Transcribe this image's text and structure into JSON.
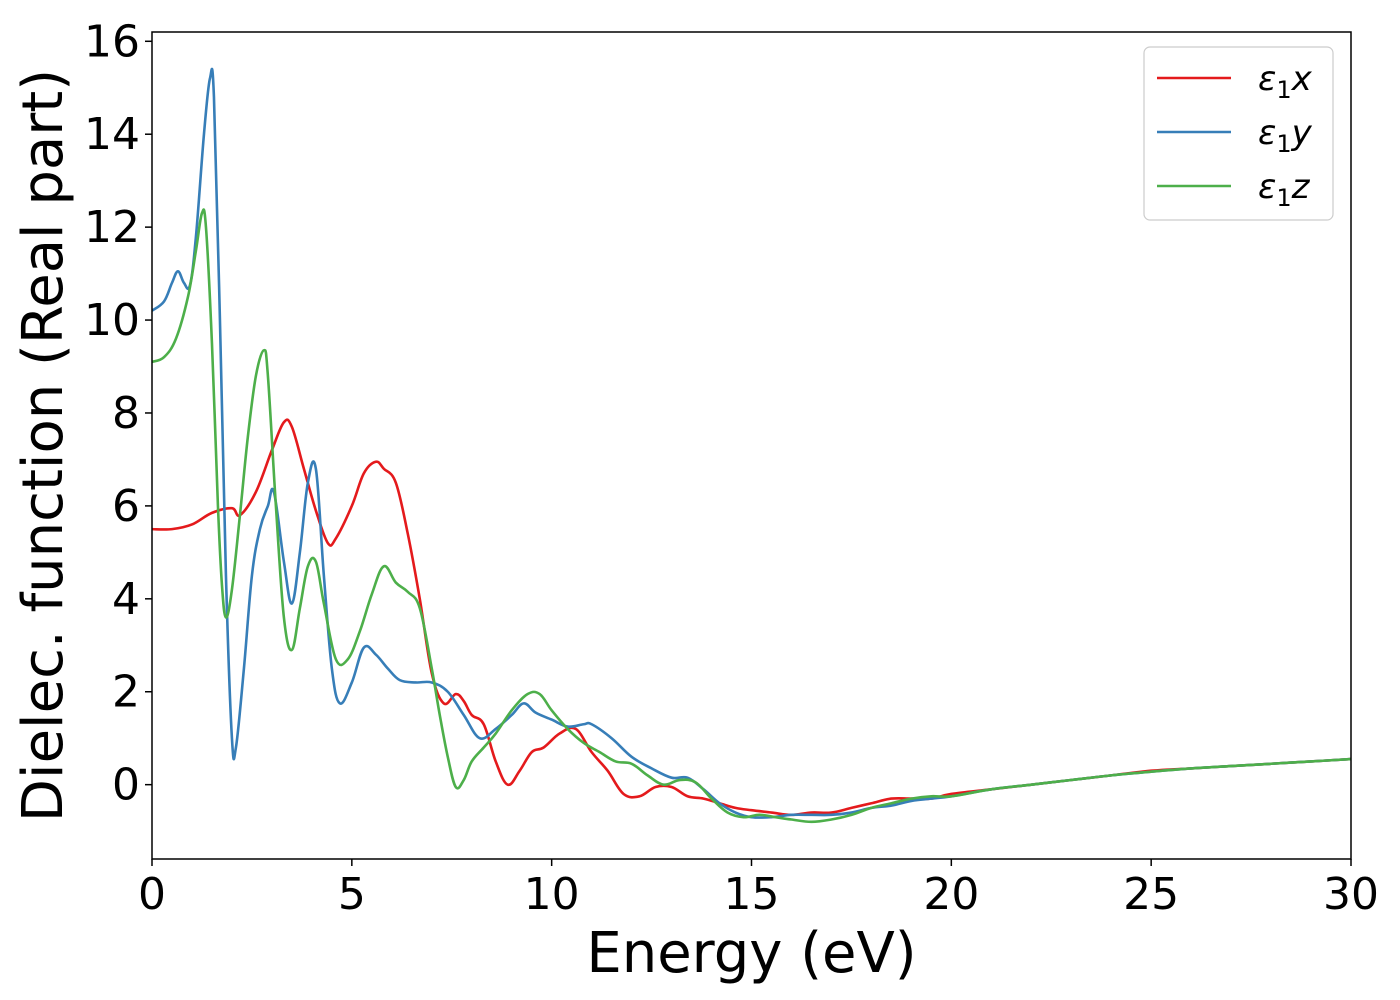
{
  "chart_data": {
    "type": "line",
    "xlabel": "Energy (eV)",
    "ylabel": "Dielec. function (Real part)",
    "xlim": [
      0,
      30
    ],
    "ylim": [
      -1.6,
      16.2
    ],
    "x_ticks": [
      0,
      5,
      10,
      15,
      20,
      25,
      30
    ],
    "y_ticks": [
      0,
      2,
      4,
      6,
      8,
      10,
      12,
      14,
      16
    ],
    "grid": false,
    "legend_position": "top-right",
    "series": [
      {
        "name": "ε1x",
        "label_main": "ε",
        "label_sub": "1",
        "label_suffix": "x",
        "color": "#e41a1c",
        "x": [
          0,
          0.5,
          1.0,
          1.5,
          2.0,
          2.2,
          2.6,
          3.0,
          3.3,
          3.5,
          3.8,
          4.1,
          4.4,
          4.6,
          5.0,
          5.3,
          5.6,
          5.8,
          6.1,
          6.4,
          6.7,
          7.0,
          7.3,
          7.6,
          7.8,
          8.0,
          8.3,
          8.6,
          8.9,
          9.2,
          9.5,
          9.8,
          10.2,
          10.6,
          11.0,
          11.4,
          11.8,
          12.2,
          12.6,
          13.0,
          13.4,
          13.8,
          14.2,
          14.6,
          15.0,
          15.5,
          16.0,
          16.5,
          17.0,
          17.5,
          18.0,
          18.5,
          19.0,
          19.5,
          20.0,
          21.0,
          22.0,
          23.0,
          24.0,
          25.0,
          26.0,
          27.0,
          28.0,
          29.0,
          30.0
        ],
        "y": [
          5.5,
          5.5,
          5.6,
          5.85,
          5.95,
          5.8,
          6.3,
          7.2,
          7.8,
          7.7,
          6.8,
          5.9,
          5.2,
          5.3,
          6.0,
          6.7,
          6.95,
          6.8,
          6.5,
          5.4,
          4.0,
          2.4,
          1.75,
          1.95,
          1.8,
          1.5,
          1.3,
          0.5,
          0.0,
          0.3,
          0.7,
          0.8,
          1.1,
          1.2,
          0.7,
          0.3,
          -0.2,
          -0.25,
          -0.05,
          -0.05,
          -0.25,
          -0.3,
          -0.4,
          -0.5,
          -0.55,
          -0.6,
          -0.65,
          -0.6,
          -0.6,
          -0.5,
          -0.4,
          -0.3,
          -0.3,
          -0.3,
          -0.2,
          -0.1,
          0.0,
          0.1,
          0.2,
          0.3,
          0.35,
          0.4,
          0.45,
          0.5,
          0.55
        ]
      },
      {
        "name": "ε1y",
        "label_main": "ε",
        "label_sub": "1",
        "label_suffix": "y",
        "color": "#377eb8",
        "x": [
          0,
          0.3,
          0.5,
          0.65,
          0.8,
          0.95,
          1.1,
          1.3,
          1.45,
          1.55,
          1.7,
          1.85,
          2.0,
          2.1,
          2.3,
          2.5,
          2.7,
          2.9,
          3.05,
          3.3,
          3.5,
          3.7,
          3.9,
          4.1,
          4.3,
          4.5,
          4.7,
          5.0,
          5.3,
          5.6,
          5.9,
          6.2,
          6.6,
          7.0,
          7.4,
          7.8,
          8.2,
          8.6,
          9.0,
          9.3,
          9.6,
          10.0,
          10.4,
          10.8,
          11.0,
          11.5,
          12.0,
          12.5,
          13.0,
          13.4,
          13.8,
          14.2,
          14.6,
          15.0,
          15.5,
          16.0,
          16.5,
          17.0,
          17.5,
          18.0,
          18.5,
          19.0,
          19.5,
          20.0,
          21.0,
          22.0,
          23.0,
          24.0,
          25.0,
          26.0,
          27.0,
          28.0,
          29.0,
          30.0
        ],
        "y": [
          10.2,
          10.4,
          10.8,
          11.05,
          10.8,
          10.75,
          11.8,
          14.0,
          15.2,
          14.8,
          10.0,
          4.5,
          1.0,
          0.8,
          2.5,
          4.5,
          5.5,
          6.0,
          6.3,
          4.8,
          3.9,
          5.0,
          6.5,
          6.8,
          4.5,
          2.5,
          1.75,
          2.2,
          2.95,
          2.8,
          2.5,
          2.25,
          2.2,
          2.2,
          2.0,
          1.5,
          1.0,
          1.2,
          1.5,
          1.75,
          1.55,
          1.4,
          1.25,
          1.3,
          1.3,
          1.0,
          0.6,
          0.35,
          0.15,
          0.15,
          -0.1,
          -0.4,
          -0.6,
          -0.7,
          -0.7,
          -0.65,
          -0.65,
          -0.65,
          -0.6,
          -0.5,
          -0.45,
          -0.35,
          -0.3,
          -0.25,
          -0.1,
          0.0,
          0.1,
          0.2,
          0.28,
          0.35,
          0.4,
          0.45,
          0.5,
          0.55
        ]
      },
      {
        "name": "ε1z",
        "label_main": "ε",
        "label_sub": "1",
        "label_suffix": "z",
        "color": "#4daf4a",
        "x": [
          0,
          0.3,
          0.6,
          0.9,
          1.1,
          1.25,
          1.35,
          1.5,
          1.65,
          1.75,
          1.85,
          2.0,
          2.2,
          2.4,
          2.6,
          2.8,
          2.9,
          3.1,
          3.3,
          3.5,
          3.7,
          3.9,
          4.1,
          4.3,
          4.6,
          4.9,
          5.2,
          5.5,
          5.8,
          6.1,
          6.4,
          6.7,
          7.0,
          7.2,
          7.4,
          7.6,
          7.8,
          8.0,
          8.3,
          8.6,
          9.0,
          9.4,
          9.7,
          10.0,
          10.4,
          10.8,
          11.2,
          11.6,
          12.0,
          12.4,
          12.8,
          13.2,
          13.6,
          14.0,
          14.4,
          14.8,
          15.2,
          15.6,
          16.0,
          16.5,
          17.0,
          17.5,
          18.0,
          18.5,
          19.0,
          19.5,
          20.0,
          21.0,
          22.0,
          23.0,
          24.0,
          25.0,
          26.0,
          27.0,
          28.0,
          29.0,
          30.0
        ],
        "y": [
          9.1,
          9.2,
          9.6,
          10.5,
          11.5,
          12.3,
          12.0,
          9.5,
          6.0,
          4.3,
          3.6,
          4.2,
          5.8,
          7.5,
          8.8,
          9.35,
          8.8,
          6.0,
          3.6,
          2.9,
          3.8,
          4.7,
          4.8,
          3.9,
          2.7,
          2.7,
          3.3,
          4.1,
          4.7,
          4.35,
          4.15,
          3.8,
          2.5,
          1.5,
          0.6,
          -0.05,
          0.1,
          0.5,
          0.8,
          1.1,
          1.6,
          1.95,
          1.95,
          1.6,
          1.2,
          0.9,
          0.7,
          0.5,
          0.45,
          0.2,
          0.0,
          0.1,
          0.05,
          -0.3,
          -0.6,
          -0.7,
          -0.65,
          -0.7,
          -0.75,
          -0.8,
          -0.75,
          -0.65,
          -0.5,
          -0.4,
          -0.3,
          -0.25,
          -0.25,
          -0.1,
          0.0,
          0.1,
          0.2,
          0.28,
          0.35,
          0.4,
          0.45,
          0.5,
          0.55
        ]
      }
    ]
  }
}
